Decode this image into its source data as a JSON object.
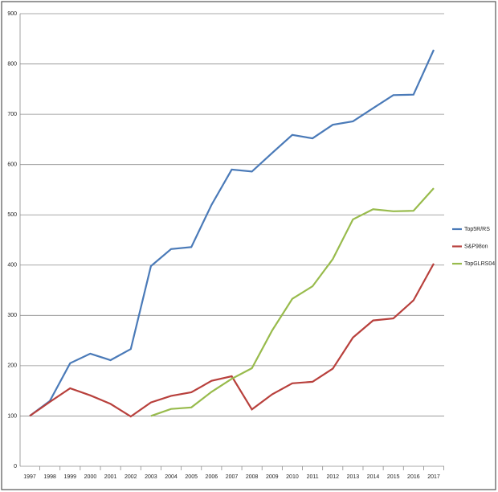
{
  "chart_data": {
    "type": "line",
    "categories": [
      "1997",
      "1998",
      "1999",
      "2000",
      "2001",
      "2002",
      "2003",
      "2004",
      "2005",
      "2006",
      "2007",
      "2008",
      "2009",
      "2010",
      "2011",
      "2012",
      "2013",
      "2014",
      "2015",
      "2016",
      "2017"
    ],
    "series": [
      {
        "name": "Top5R/RS",
        "color": "#4a7ab8",
        "values": [
          100,
          130,
          205,
          224,
          211,
          233,
          398,
          432,
          436,
          520,
          590,
          586,
          623,
          659,
          652,
          679,
          686,
          712,
          738,
          739,
          828
        ]
      },
      {
        "name": "S&P98on",
        "color": "#b8403c",
        "values": [
          100,
          128,
          155,
          141,
          124,
          99,
          127,
          140,
          147,
          170,
          179,
          113,
          143,
          165,
          168,
          194,
          256,
          290,
          294,
          330,
          403
        ]
      },
      {
        "name": "TopGLRS04",
        "color": "#98bb4c",
        "values": [
          null,
          null,
          null,
          null,
          null,
          null,
          100,
          114,
          117,
          148,
          174,
          195,
          270,
          333,
          358,
          412,
          491,
          511,
          507,
          508,
          553
        ]
      }
    ],
    "ylim": [
      0,
      900
    ],
    "yticks": [
      0,
      100,
      200,
      300,
      400,
      500,
      600,
      700,
      800,
      900
    ],
    "grid": true,
    "legend": "right"
  }
}
